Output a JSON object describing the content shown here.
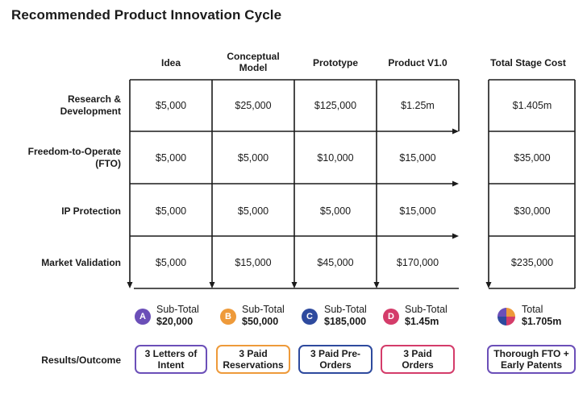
{
  "title": "Recommended Product Innovation Cycle",
  "columns": [
    "Idea",
    "Conceptual Model",
    "Prototype",
    "Product V1.0"
  ],
  "total_column": "Total Stage Cost",
  "rows": [
    {
      "label": "Research & Development",
      "values": [
        "$5,000",
        "$25,000",
        "$125,000",
        "$1.25m"
      ],
      "total": "$1.405m"
    },
    {
      "label": "Freedom-to-Operate (FTO)",
      "values": [
        "$5,000",
        "$5,000",
        "$10,000",
        "$15,000"
      ],
      "total": "$35,000"
    },
    {
      "label": "IP Protection",
      "values": [
        "$5,000",
        "$5,000",
        "$5,000",
        "$15,000"
      ],
      "total": "$30,000"
    },
    {
      "label": "Market Validation",
      "values": [
        "$5,000",
        "$15,000",
        "$45,000",
        "$170,000"
      ],
      "total": "$235,000"
    }
  ],
  "subtotals": [
    {
      "badge": "A",
      "label": "Sub-Total",
      "amount": "$20,000",
      "color": "#6b4fb8"
    },
    {
      "badge": "B",
      "label": "Sub-Total",
      "amount": "$50,000",
      "color": "#ee9a3a"
    },
    {
      "badge": "C",
      "label": "Sub-Total",
      "amount": "$185,000",
      "color": "#2e4a9e"
    },
    {
      "badge": "D",
      "label": "Sub-Total",
      "amount": "$1.45m",
      "color": "#d43c6a"
    }
  ],
  "total": {
    "label": "Total",
    "amount": "$1.705m",
    "icon": "pie-chart-icon"
  },
  "results_label": "Results/Outcome",
  "outcomes": [
    {
      "text": "3 Letters of Intent",
      "color": "#6b4fb8"
    },
    {
      "text": "3 Paid Reservations",
      "color": "#ee9a3a"
    },
    {
      "text": "3 Paid Pre-Orders",
      "color": "#2e4a9e"
    },
    {
      "text": "3 Paid Orders",
      "color": "#d43c6a"
    },
    {
      "text": "Thorough FTO + Early Patents",
      "color": "#6b4fb8"
    }
  ]
}
